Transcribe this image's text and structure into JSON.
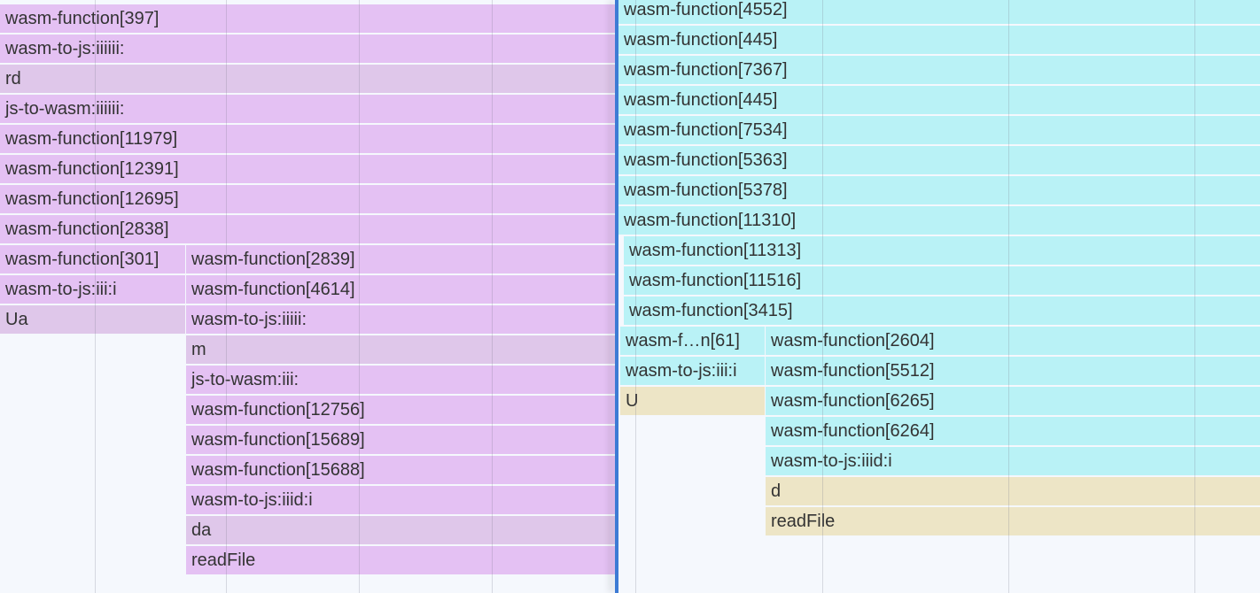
{
  "colors": {
    "wasm_left": "#e4c1f3",
    "js_left": "#dfc7ea",
    "wasm_right": "#b9f2f6",
    "js_right": "#ede5c6",
    "divider": "#3d7bd4"
  },
  "left_pane": {
    "rows": [
      [
        "wasm-function[397]"
      ],
      [
        "wasm-to-js:iiiiii:"
      ],
      [
        "rd"
      ],
      [
        "js-to-wasm:iiiiii:"
      ],
      [
        "wasm-function[11979]"
      ],
      [
        "wasm-function[12391]"
      ],
      [
        "wasm-function[12695]"
      ],
      [
        "wasm-function[2838]"
      ],
      [
        "wasm-function[301]",
        "wasm-function[2839]"
      ],
      [
        "wasm-to-js:iii:i",
        "wasm-function[4614]"
      ],
      [
        "Ua",
        "wasm-to-js:iiiii:"
      ],
      [
        "m"
      ],
      [
        "js-to-wasm:iii:"
      ],
      [
        "wasm-function[12756]"
      ],
      [
        "wasm-function[15689]"
      ],
      [
        "wasm-function[15688]"
      ],
      [
        "wasm-to-js:iiid:i"
      ],
      [
        "da"
      ],
      [
        "readFile"
      ]
    ]
  },
  "right_pane": {
    "rows": [
      [
        "wasm-function[4552]"
      ],
      [
        "wasm-function[445]"
      ],
      [
        "wasm-function[7367]"
      ],
      [
        "wasm-function[445]"
      ],
      [
        "wasm-function[7534]"
      ],
      [
        "wasm-function[5363]"
      ],
      [
        "wasm-function[5378]"
      ],
      [
        "wasm-function[11310]"
      ],
      [
        "wasm-function[11313]"
      ],
      [
        "wasm-function[11516]"
      ],
      [
        "wasm-function[3415]"
      ],
      [
        "wasm-f…n[61]",
        "wasm-function[2604]"
      ],
      [
        "wasm-to-js:iii:i",
        "wasm-function[5512]"
      ],
      [
        "U",
        "wasm-function[6265]"
      ],
      [
        "wasm-function[6264]"
      ],
      [
        "wasm-to-js:iiid:i"
      ],
      [
        "d"
      ],
      [
        "readFile"
      ]
    ]
  }
}
